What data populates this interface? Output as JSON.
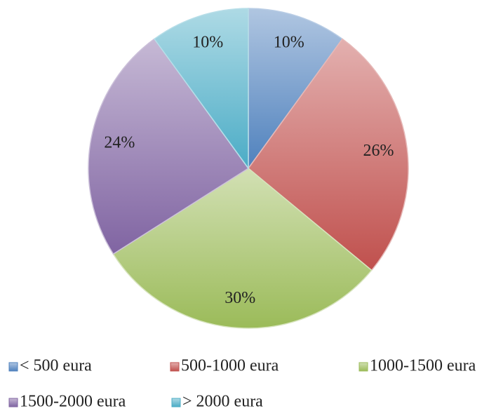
{
  "chart_data": {
    "type": "pie",
    "categories": [
      "< 500 eura",
      "500-1000 eura",
      "1000-1500 eura",
      "1500-2000 eura",
      "> 2000 eura"
    ],
    "values": [
      10,
      26,
      30,
      24,
      10
    ],
    "value_labels": [
      "10%",
      "26%",
      "30%",
      "24%",
      "10%"
    ],
    "colors": [
      "#4f81bd",
      "#c0504d",
      "#9bbb59",
      "#8064a2",
      "#4bacc6"
    ],
    "legend": "bottom"
  }
}
